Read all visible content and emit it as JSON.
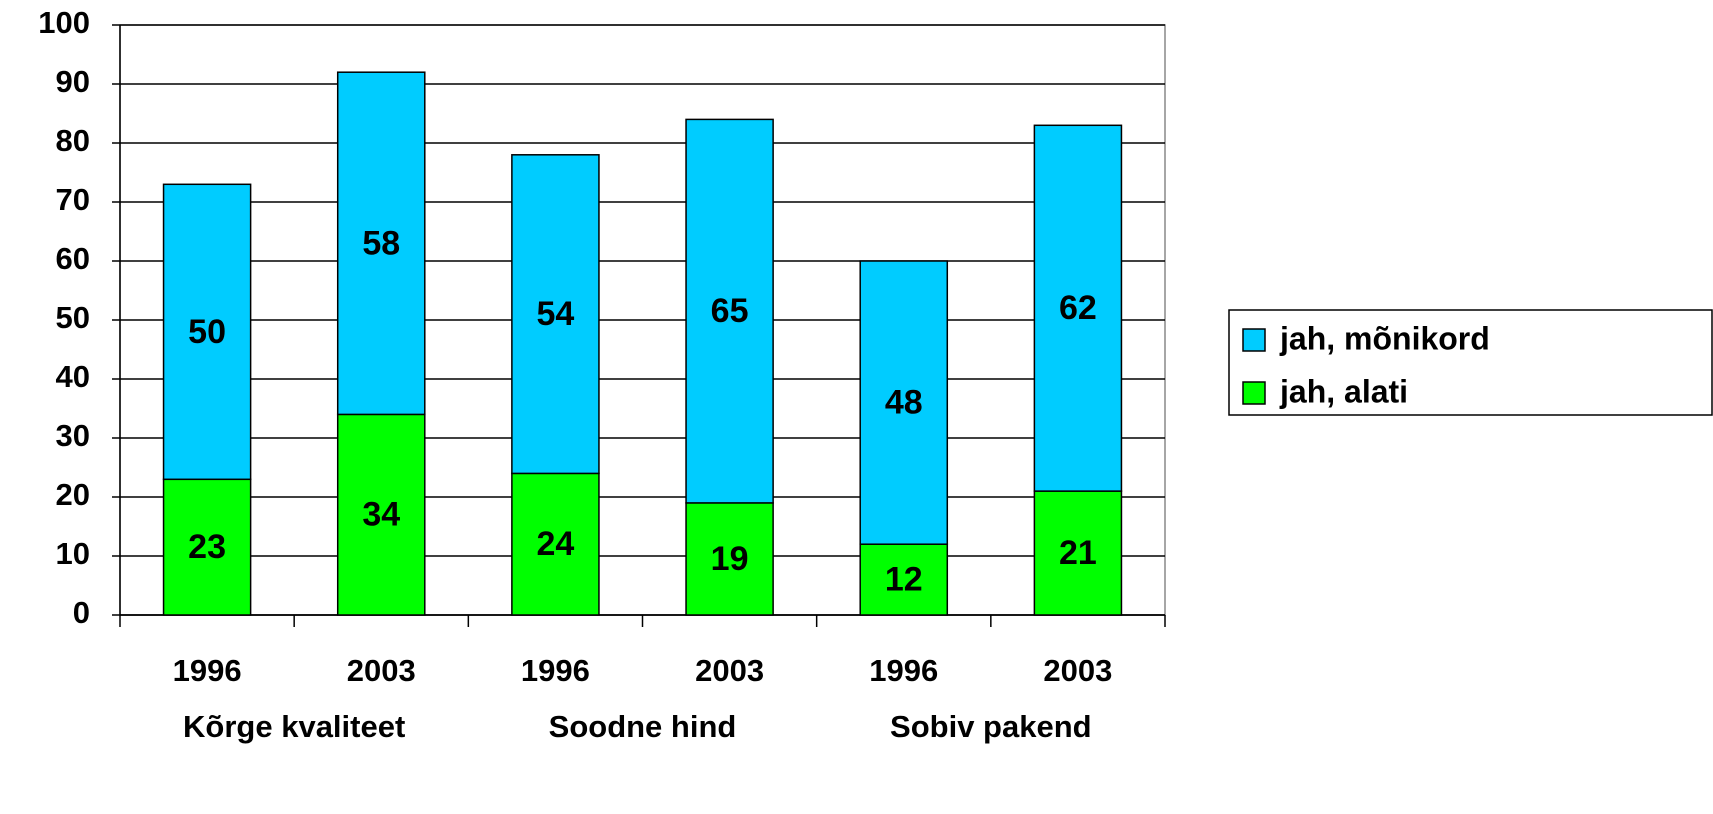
{
  "chart_data": {
    "type": "stacked_bar",
    "categories": [
      "1996",
      "2003",
      "1996",
      "2003",
      "1996",
      "2003"
    ],
    "groups": [
      "Kõrge kvaliteet",
      "Soodne hind",
      "Sobiv pakend"
    ],
    "series": [
      {
        "name": "jah, alati",
        "color": "#00ff00",
        "values": [
          23,
          34,
          24,
          19,
          12,
          21
        ]
      },
      {
        "name": "jah, mõnikord",
        "color": "#00ccff",
        "values": [
          50,
          58,
          54,
          65,
          48,
          62
        ]
      }
    ],
    "ylim": [
      0,
      100
    ],
    "yticks": [
      0,
      10,
      20,
      30,
      40,
      50,
      60,
      70,
      80,
      90,
      100
    ],
    "grid": true,
    "legend": "right"
  }
}
